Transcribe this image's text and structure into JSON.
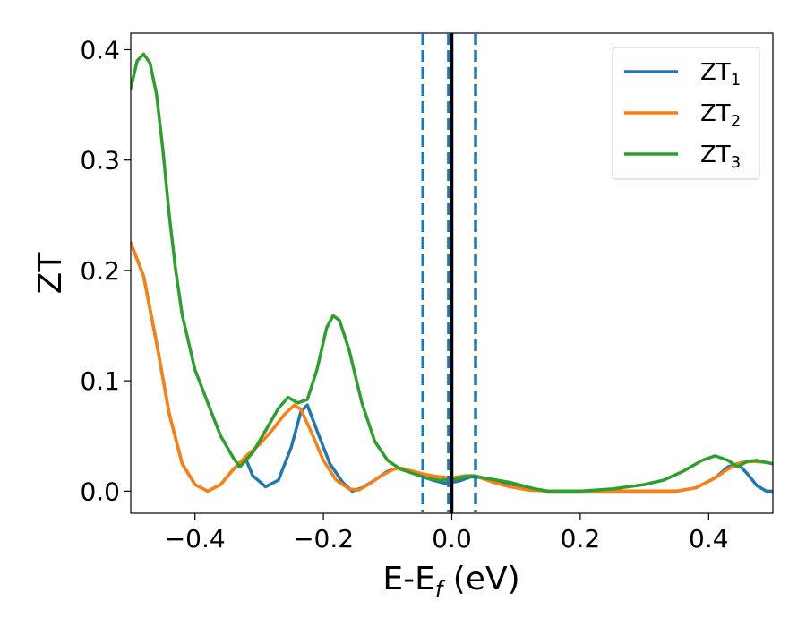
{
  "chart_data": {
    "type": "line",
    "title": "",
    "xlabel": "E-E",
    "xlabel_sub": "f",
    "xlabel_unit": " (eV)",
    "ylabel": "ZT",
    "xlim": [
      -0.5,
      0.5
    ],
    "ylim": [
      -0.02,
      0.415
    ],
    "xticks": [
      -0.4,
      -0.2,
      0.0,
      0.2,
      0.4
    ],
    "xtick_labels": [
      "−0.4",
      "−0.2",
      "0.0",
      "0.2",
      "0.4"
    ],
    "yticks": [
      0.0,
      0.1,
      0.2,
      0.3,
      0.4
    ],
    "ytick_labels": [
      "0.0",
      "0.1",
      "0.2",
      "0.3",
      "0.4"
    ],
    "grid": false,
    "legend_position": "top-right",
    "vlines": [
      {
        "x": -0.045,
        "style": "dashed",
        "color": "#1f77b4"
      },
      {
        "x": -0.005,
        "style": "dashed",
        "color": "#1f77b4"
      },
      {
        "x": 0.037,
        "style": "dashed",
        "color": "#1f77b4"
      },
      {
        "x": 0.0,
        "style": "solid",
        "color": "#000000"
      }
    ],
    "series": [
      {
        "name": "ZT",
        "name_sub": "1",
        "color": "#1f77b4",
        "points": [
          [
            -0.5,
            0.225
          ],
          [
            -0.48,
            0.195
          ],
          [
            -0.46,
            0.135
          ],
          [
            -0.44,
            0.07
          ],
          [
            -0.42,
            0.025
          ],
          [
            -0.4,
            0.006
          ],
          [
            -0.38,
            0.0
          ],
          [
            -0.36,
            0.006
          ],
          [
            -0.34,
            0.02
          ],
          [
            -0.32,
            0.028
          ],
          [
            -0.31,
            0.014
          ],
          [
            -0.29,
            0.004
          ],
          [
            -0.27,
            0.01
          ],
          [
            -0.25,
            0.04
          ],
          [
            -0.235,
            0.072
          ],
          [
            -0.225,
            0.078
          ],
          [
            -0.21,
            0.055
          ],
          [
            -0.19,
            0.025
          ],
          [
            -0.17,
            0.008
          ],
          [
            -0.155,
            0.0
          ],
          [
            -0.14,
            0.003
          ],
          [
            -0.12,
            0.01
          ],
          [
            -0.1,
            0.018
          ],
          [
            -0.085,
            0.021
          ],
          [
            -0.07,
            0.019
          ],
          [
            -0.05,
            0.014
          ],
          [
            -0.03,
            0.01
          ],
          [
            -0.01,
            0.007
          ],
          [
            0.01,
            0.009
          ],
          [
            0.03,
            0.013
          ],
          [
            0.05,
            0.012
          ],
          [
            0.07,
            0.008
          ],
          [
            0.09,
            0.005
          ],
          [
            0.12,
            0.002
          ],
          [
            0.15,
            0.0
          ],
          [
            0.2,
            0.0
          ],
          [
            0.25,
            0.0
          ],
          [
            0.3,
            0.0
          ],
          [
            0.35,
            0.0
          ],
          [
            0.38,
            0.003
          ],
          [
            0.41,
            0.012
          ],
          [
            0.43,
            0.022
          ],
          [
            0.445,
            0.025
          ],
          [
            0.46,
            0.016
          ],
          [
            0.475,
            0.005
          ],
          [
            0.49,
            0.0
          ],
          [
            0.5,
            0.0
          ]
        ]
      },
      {
        "name": "ZT",
        "name_sub": "2",
        "color": "#ff7f0e",
        "points": [
          [
            -0.5,
            0.225
          ],
          [
            -0.48,
            0.195
          ],
          [
            -0.46,
            0.135
          ],
          [
            -0.44,
            0.07
          ],
          [
            -0.42,
            0.025
          ],
          [
            -0.4,
            0.006
          ],
          [
            -0.38,
            0.0
          ],
          [
            -0.36,
            0.006
          ],
          [
            -0.34,
            0.02
          ],
          [
            -0.32,
            0.032
          ],
          [
            -0.3,
            0.042
          ],
          [
            -0.28,
            0.055
          ],
          [
            -0.26,
            0.07
          ],
          [
            -0.245,
            0.078
          ],
          [
            -0.235,
            0.074
          ],
          [
            -0.22,
            0.055
          ],
          [
            -0.2,
            0.028
          ],
          [
            -0.18,
            0.01
          ],
          [
            -0.16,
            0.002
          ],
          [
            -0.145,
            0.001
          ],
          [
            -0.13,
            0.006
          ],
          [
            -0.11,
            0.014
          ],
          [
            -0.09,
            0.02
          ],
          [
            -0.08,
            0.021
          ],
          [
            -0.06,
            0.018
          ],
          [
            -0.04,
            0.015
          ],
          [
            -0.02,
            0.013
          ],
          [
            0.0,
            0.012
          ],
          [
            0.02,
            0.014
          ],
          [
            0.035,
            0.014
          ],
          [
            0.05,
            0.011
          ],
          [
            0.07,
            0.007
          ],
          [
            0.09,
            0.004
          ],
          [
            0.12,
            0.001
          ],
          [
            0.15,
            0.0
          ],
          [
            0.2,
            0.0
          ],
          [
            0.25,
            0.0
          ],
          [
            0.3,
            0.0
          ],
          [
            0.35,
            0.0
          ],
          [
            0.38,
            0.003
          ],
          [
            0.41,
            0.012
          ],
          [
            0.43,
            0.02
          ],
          [
            0.45,
            0.026
          ],
          [
            0.47,
            0.027
          ],
          [
            0.49,
            0.026
          ],
          [
            0.5,
            0.025
          ]
        ]
      },
      {
        "name": "ZT",
        "name_sub": "3",
        "color": "#2ca02c",
        "points": [
          [
            -0.5,
            0.365
          ],
          [
            -0.49,
            0.39
          ],
          [
            -0.48,
            0.396
          ],
          [
            -0.47,
            0.388
          ],
          [
            -0.46,
            0.36
          ],
          [
            -0.45,
            0.31
          ],
          [
            -0.44,
            0.25
          ],
          [
            -0.43,
            0.2
          ],
          [
            -0.42,
            0.16
          ],
          [
            -0.4,
            0.11
          ],
          [
            -0.38,
            0.08
          ],
          [
            -0.36,
            0.05
          ],
          [
            -0.34,
            0.03
          ],
          [
            -0.33,
            0.022
          ],
          [
            -0.31,
            0.035
          ],
          [
            -0.29,
            0.055
          ],
          [
            -0.27,
            0.075
          ],
          [
            -0.255,
            0.085
          ],
          [
            -0.24,
            0.08
          ],
          [
            -0.225,
            0.083
          ],
          [
            -0.21,
            0.11
          ],
          [
            -0.195,
            0.148
          ],
          [
            -0.185,
            0.159
          ],
          [
            -0.175,
            0.155
          ],
          [
            -0.16,
            0.128
          ],
          [
            -0.14,
            0.08
          ],
          [
            -0.12,
            0.045
          ],
          [
            -0.1,
            0.028
          ],
          [
            -0.08,
            0.02
          ],
          [
            -0.06,
            0.016
          ],
          [
            -0.04,
            0.012
          ],
          [
            -0.02,
            0.01
          ],
          [
            0.0,
            0.01
          ],
          [
            0.02,
            0.013
          ],
          [
            0.035,
            0.014
          ],
          [
            0.05,
            0.012
          ],
          [
            0.07,
            0.01
          ],
          [
            0.09,
            0.008
          ],
          [
            0.11,
            0.005
          ],
          [
            0.13,
            0.002
          ],
          [
            0.15,
            0.0
          ],
          [
            0.2,
            0.0
          ],
          [
            0.25,
            0.002
          ],
          [
            0.3,
            0.006
          ],
          [
            0.33,
            0.01
          ],
          [
            0.36,
            0.018
          ],
          [
            0.39,
            0.028
          ],
          [
            0.41,
            0.032
          ],
          [
            0.43,
            0.028
          ],
          [
            0.445,
            0.022
          ],
          [
            0.46,
            0.027
          ],
          [
            0.475,
            0.028
          ],
          [
            0.49,
            0.026
          ],
          [
            0.5,
            0.025
          ]
        ]
      }
    ]
  }
}
